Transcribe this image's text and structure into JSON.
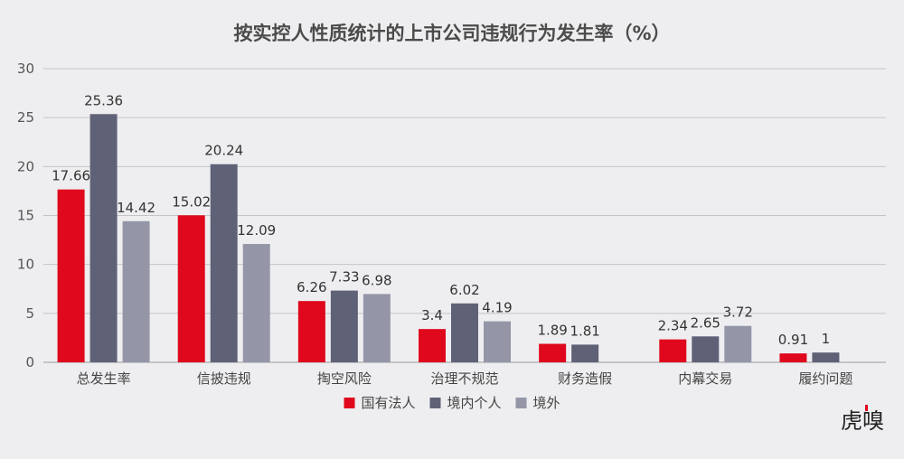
{
  "chart_data": {
    "type": "bar",
    "title": "按实控人性质统计的上市公司违规行为发生率（%）",
    "xlabel": "",
    "ylabel": "",
    "ylim": [
      0,
      30
    ],
    "yticks": [
      0,
      5,
      10,
      15,
      20,
      25,
      30
    ],
    "grid": true,
    "legend_position": "bottom",
    "categories": [
      "总发生率",
      "信披违规",
      "掏空风险",
      "治理不规范",
      "财务造假",
      "内幕交易",
      "履约问题"
    ],
    "series": [
      {
        "name": "国有法人",
        "color": "#e0081c",
        "values": [
          17.66,
          15.02,
          6.26,
          3.4,
          1.89,
          2.34,
          0.91
        ]
      },
      {
        "name": "境内个人",
        "color": "#5f6277",
        "values": [
          25.36,
          20.24,
          7.33,
          6.02,
          1.81,
          2.65,
          1
        ]
      },
      {
        "name": "境外",
        "color": "#9496a8",
        "values": [
          14.42,
          12.09,
          6.98,
          4.19,
          null,
          3.72,
          null
        ]
      }
    ]
  },
  "watermark": {
    "logo_text": "虎嗅",
    "accent_color": "#e0081c"
  }
}
